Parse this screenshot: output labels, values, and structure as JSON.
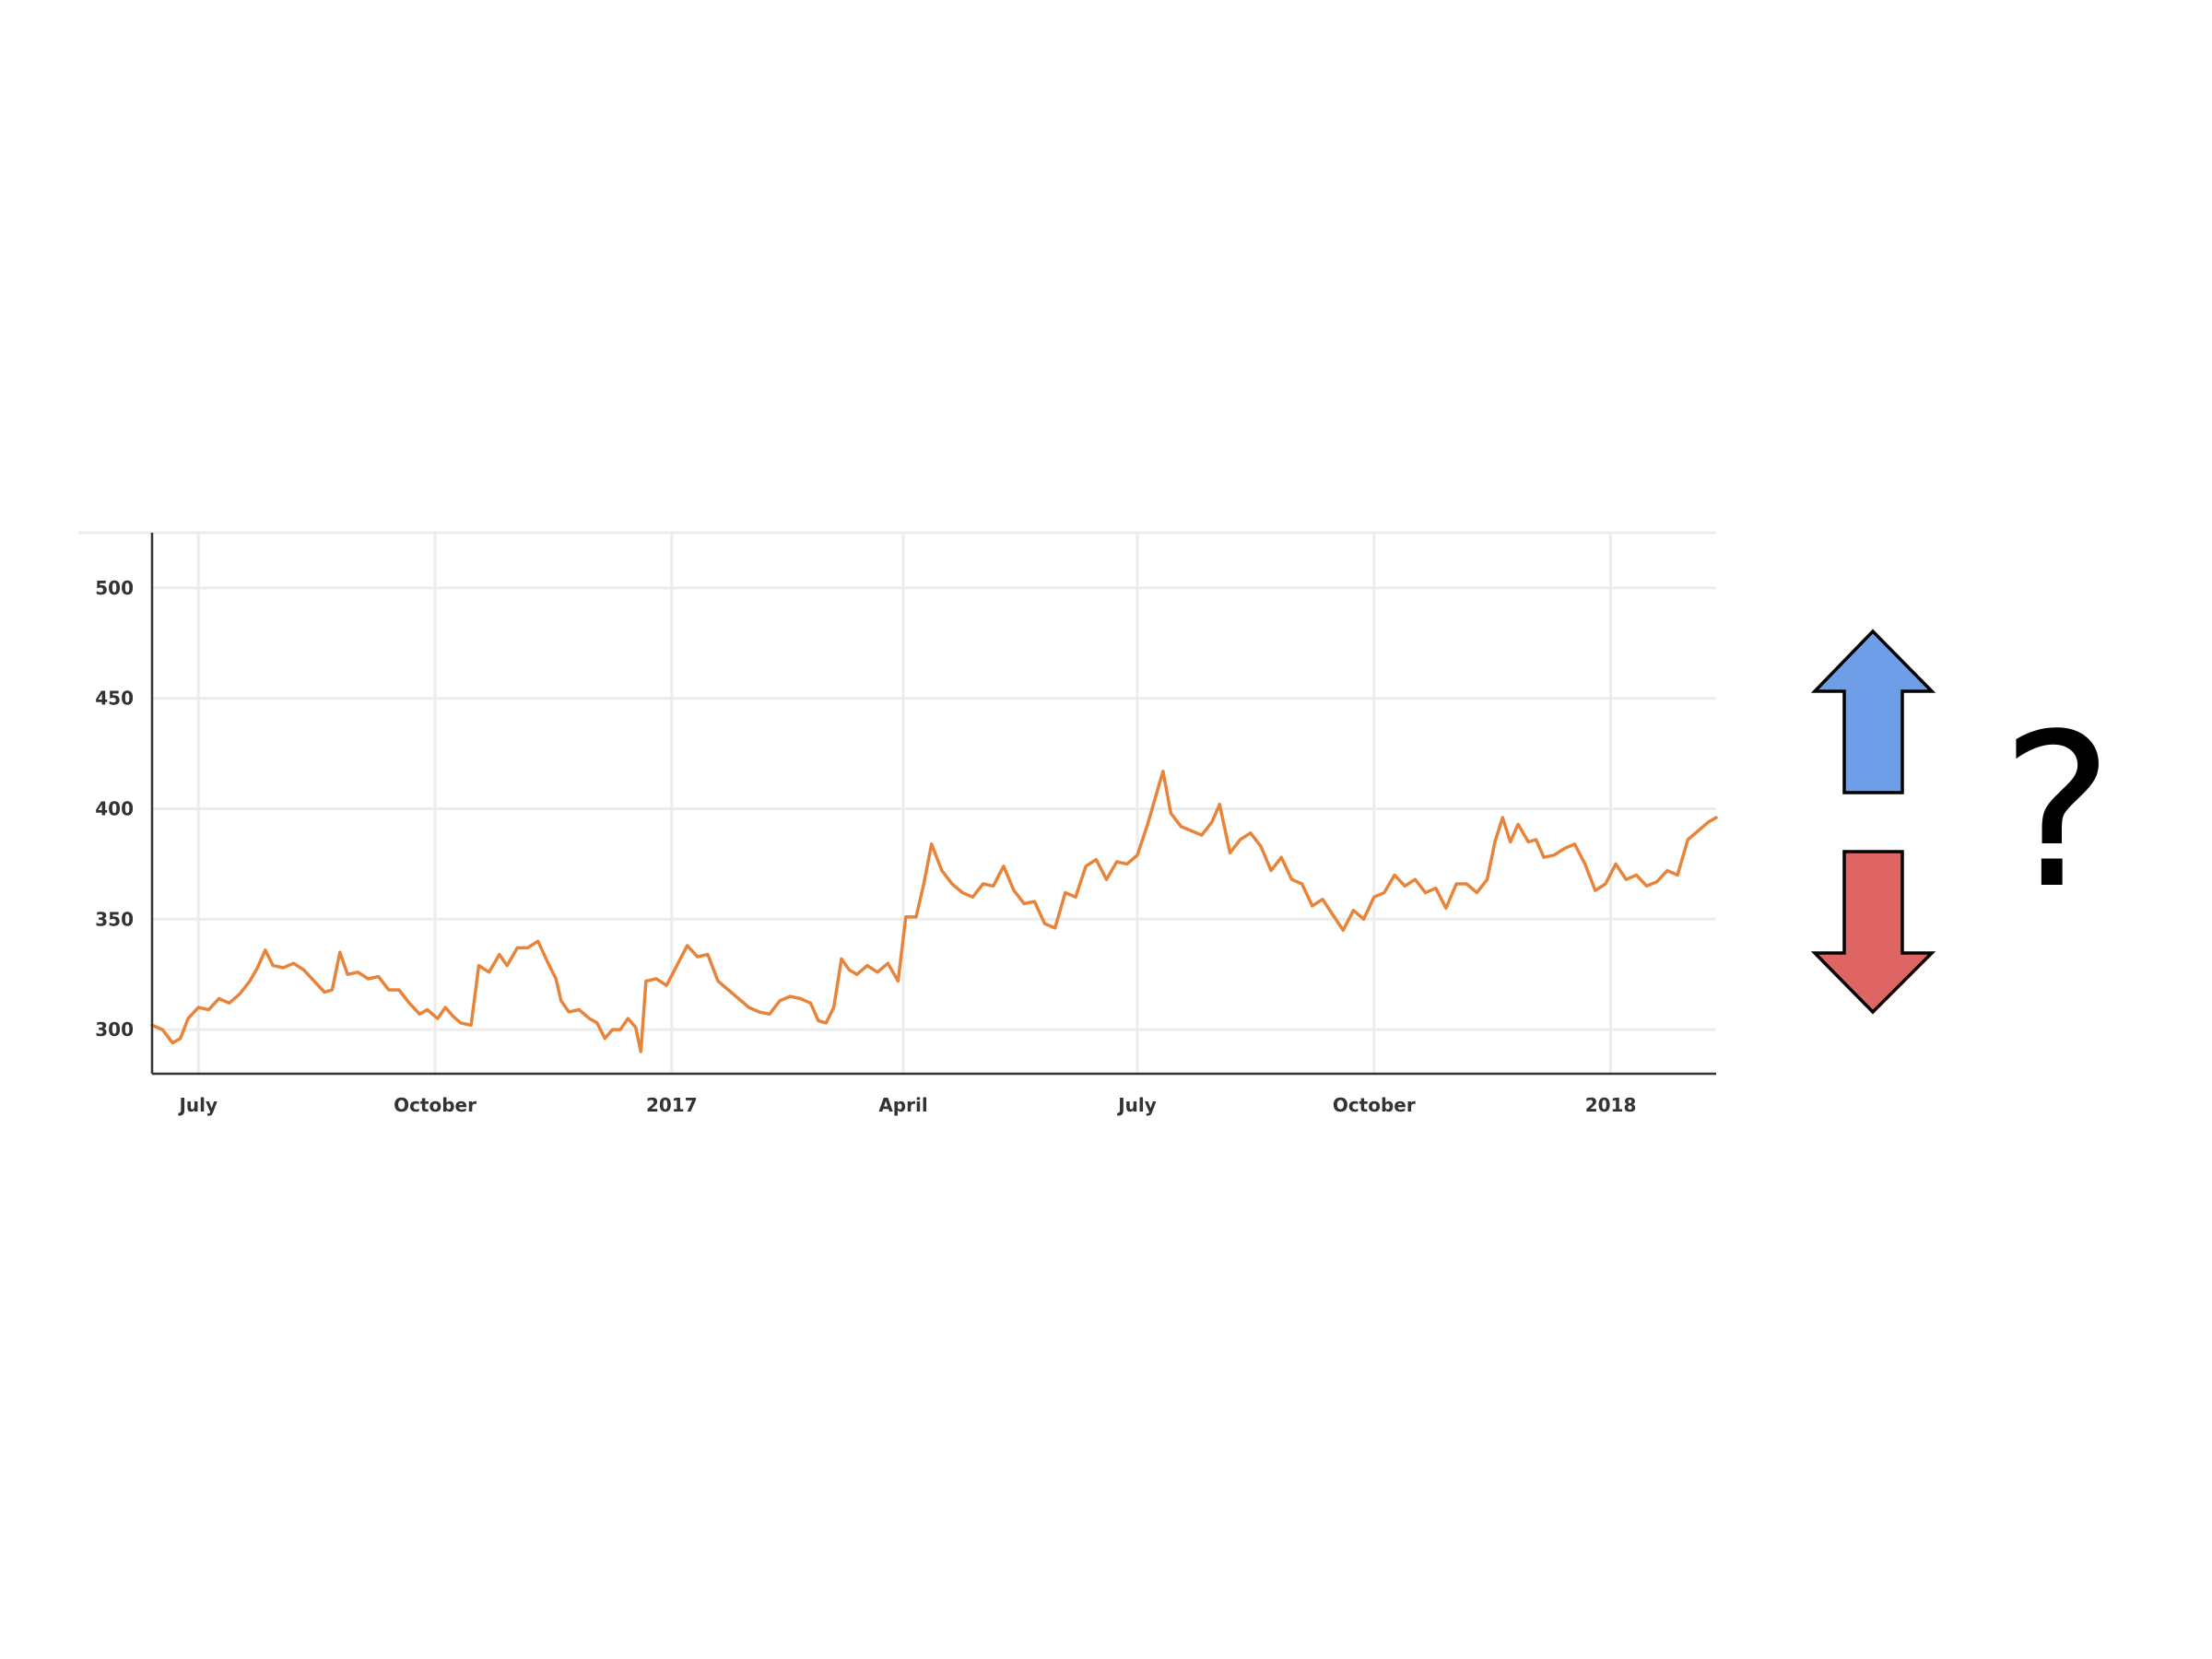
{
  "chart_data": {
    "type": "line",
    "title": "",
    "xlabel": "",
    "ylabel": "",
    "x_range": [
      "2016-06-13",
      "2018-02-11"
    ],
    "ylim": [
      280,
      525
    ],
    "grid": true,
    "legend": "none",
    "y_ticks": [
      {
        "value": 300,
        "label": "300"
      },
      {
        "value": 350,
        "label": "350"
      },
      {
        "value": 400,
        "label": "400"
      },
      {
        "value": 450,
        "label": "450"
      },
      {
        "value": 500,
        "label": "500"
      }
    ],
    "x_ticks": [
      {
        "date": "2016-07-01",
        "label": "July"
      },
      {
        "date": "2016-10-01",
        "label": "October"
      },
      {
        "date": "2017-01-01",
        "label": "2017"
      },
      {
        "date": "2017-04-01",
        "label": "April"
      },
      {
        "date": "2017-07-01",
        "label": "July"
      },
      {
        "date": "2017-10-01",
        "label": "October"
      },
      {
        "date": "2018-01-01",
        "label": "2018"
      }
    ],
    "series": [
      {
        "color": "#e8833a",
        "points": [
          [
            "2016-06-13",
            302
          ],
          [
            "2016-06-17",
            300
          ],
          [
            "2016-06-21",
            294
          ],
          [
            "2016-06-24",
            296
          ],
          [
            "2016-06-27",
            305
          ],
          [
            "2016-07-01",
            310
          ],
          [
            "2016-07-05",
            309
          ],
          [
            "2016-07-09",
            314
          ],
          [
            "2016-07-13",
            312
          ],
          [
            "2016-07-17",
            316
          ],
          [
            "2016-07-21",
            322
          ],
          [
            "2016-07-24",
            328
          ],
          [
            "2016-07-27",
            336
          ],
          [
            "2016-07-30",
            329
          ],
          [
            "2016-08-03",
            328
          ],
          [
            "2016-08-07",
            330
          ],
          [
            "2016-08-11",
            327
          ],
          [
            "2016-08-15",
            322
          ],
          [
            "2016-08-19",
            317
          ],
          [
            "2016-08-22",
            318
          ],
          [
            "2016-08-25",
            335
          ],
          [
            "2016-08-28",
            325
          ],
          [
            "2016-09-01",
            326
          ],
          [
            "2016-09-05",
            323
          ],
          [
            "2016-09-09",
            324
          ],
          [
            "2016-09-13",
            318
          ],
          [
            "2016-09-17",
            318
          ],
          [
            "2016-09-21",
            312
          ],
          [
            "2016-09-25",
            307
          ],
          [
            "2016-09-28",
            309
          ],
          [
            "2016-10-02",
            305
          ],
          [
            "2016-10-05",
            310
          ],
          [
            "2016-10-08",
            306
          ],
          [
            "2016-10-11",
            303
          ],
          [
            "2016-10-15",
            302
          ],
          [
            "2016-10-18",
            329
          ],
          [
            "2016-10-22",
            326
          ],
          [
            "2016-10-26",
            334
          ],
          [
            "2016-10-29",
            329
          ],
          [
            "2016-11-02",
            337
          ],
          [
            "2016-11-06",
            337
          ],
          [
            "2016-11-10",
            340
          ],
          [
            "2016-11-14",
            330
          ],
          [
            "2016-11-17",
            323
          ],
          [
            "2016-11-19",
            313
          ],
          [
            "2016-11-22",
            308
          ],
          [
            "2016-11-26",
            309
          ],
          [
            "2016-11-30",
            305
          ],
          [
            "2016-12-03",
            303
          ],
          [
            "2016-12-06",
            296
          ],
          [
            "2016-12-09",
            300
          ],
          [
            "2016-12-12",
            300
          ],
          [
            "2016-12-15",
            305
          ],
          [
            "2016-12-18",
            301
          ],
          [
            "2016-12-20",
            290
          ],
          [
            "2016-12-22",
            322
          ],
          [
            "2016-12-26",
            323
          ],
          [
            "2016-12-30",
            320
          ],
          [
            "2017-01-03",
            329
          ],
          [
            "2017-01-07",
            338
          ],
          [
            "2017-01-11",
            333
          ],
          [
            "2017-01-15",
            334
          ],
          [
            "2017-01-19",
            322
          ],
          [
            "2017-01-23",
            318
          ],
          [
            "2017-01-27",
            314
          ],
          [
            "2017-01-31",
            310
          ],
          [
            "2017-02-04",
            308
          ],
          [
            "2017-02-08",
            307
          ],
          [
            "2017-02-12",
            313
          ],
          [
            "2017-02-16",
            315
          ],
          [
            "2017-02-20",
            314
          ],
          [
            "2017-02-24",
            312
          ],
          [
            "2017-02-27",
            304
          ],
          [
            "2017-03-02",
            303
          ],
          [
            "2017-03-05",
            310
          ],
          [
            "2017-03-08",
            332
          ],
          [
            "2017-03-11",
            327
          ],
          [
            "2017-03-14",
            325
          ],
          [
            "2017-03-18",
            329
          ],
          [
            "2017-03-22",
            326
          ],
          [
            "2017-03-26",
            330
          ],
          [
            "2017-03-30",
            322
          ],
          [
            "2017-04-02",
            351
          ],
          [
            "2017-04-06",
            351
          ],
          [
            "2017-04-09",
            366
          ],
          [
            "2017-04-12",
            384
          ],
          [
            "2017-04-16",
            372
          ],
          [
            "2017-04-20",
            366
          ],
          [
            "2017-04-24",
            362
          ],
          [
            "2017-04-28",
            360
          ],
          [
            "2017-05-02",
            366
          ],
          [
            "2017-05-06",
            365
          ],
          [
            "2017-05-10",
            374
          ],
          [
            "2017-05-14",
            363
          ],
          [
            "2017-05-18",
            357
          ],
          [
            "2017-05-22",
            358
          ],
          [
            "2017-05-26",
            348
          ],
          [
            "2017-05-30",
            346
          ],
          [
            "2017-06-03",
            362
          ],
          [
            "2017-06-07",
            360
          ],
          [
            "2017-06-11",
            374
          ],
          [
            "2017-06-15",
            377
          ],
          [
            "2017-06-19",
            368
          ],
          [
            "2017-06-23",
            376
          ],
          [
            "2017-06-27",
            375
          ],
          [
            "2017-07-01",
            379
          ],
          [
            "2017-07-05",
            393
          ],
          [
            "2017-07-08",
            405
          ],
          [
            "2017-07-11",
            417
          ],
          [
            "2017-07-14",
            398
          ],
          [
            "2017-07-18",
            392
          ],
          [
            "2017-07-22",
            390
          ],
          [
            "2017-07-26",
            388
          ],
          [
            "2017-07-30",
            394
          ],
          [
            "2017-08-02",
            402
          ],
          [
            "2017-08-06",
            380
          ],
          [
            "2017-08-10",
            386
          ],
          [
            "2017-08-14",
            389
          ],
          [
            "2017-08-18",
            383
          ],
          [
            "2017-08-22",
            372
          ],
          [
            "2017-08-26",
            378
          ],
          [
            "2017-08-30",
            368
          ],
          [
            "2017-09-03",
            366
          ],
          [
            "2017-09-07",
            356
          ],
          [
            "2017-09-11",
            359
          ],
          [
            "2017-09-15",
            352
          ],
          [
            "2017-09-19",
            345
          ],
          [
            "2017-09-23",
            354
          ],
          [
            "2017-09-27",
            350
          ],
          [
            "2017-10-01",
            360
          ],
          [
            "2017-10-05",
            362
          ],
          [
            "2017-10-09",
            370
          ],
          [
            "2017-10-13",
            365
          ],
          [
            "2017-10-17",
            368
          ],
          [
            "2017-10-21",
            362
          ],
          [
            "2017-10-25",
            364
          ],
          [
            "2017-10-29",
            355
          ],
          [
            "2017-11-02",
            366
          ],
          [
            "2017-11-06",
            366
          ],
          [
            "2017-11-10",
            362
          ],
          [
            "2017-11-14",
            368
          ],
          [
            "2017-11-17",
            385
          ],
          [
            "2017-11-20",
            396
          ],
          [
            "2017-11-23",
            385
          ],
          [
            "2017-11-26",
            393
          ],
          [
            "2017-11-30",
            385
          ],
          [
            "2017-12-03",
            386
          ],
          [
            "2017-12-06",
            378
          ],
          [
            "2017-12-10",
            379
          ],
          [
            "2017-12-14",
            382
          ],
          [
            "2017-12-18",
            384
          ],
          [
            "2017-12-22",
            375
          ],
          [
            "2017-12-26",
            363
          ],
          [
            "2017-12-30",
            366
          ],
          [
            "2018-01-03",
            375
          ],
          [
            "2018-01-07",
            368
          ],
          [
            "2018-01-11",
            370
          ],
          [
            "2018-01-15",
            365
          ],
          [
            "2018-01-19",
            367
          ],
          [
            "2018-01-23",
            372
          ],
          [
            "2018-01-27",
            370
          ],
          [
            "2018-01-31",
            386
          ],
          [
            "2018-02-04",
            390
          ],
          [
            "2018-02-08",
            394
          ],
          [
            "2018-02-11",
            396
          ]
        ]
      }
    ]
  },
  "side_panel": {
    "up_arrow_color": "#6e9ee8",
    "down_arrow_color": "#df6564",
    "question_text": "?"
  }
}
